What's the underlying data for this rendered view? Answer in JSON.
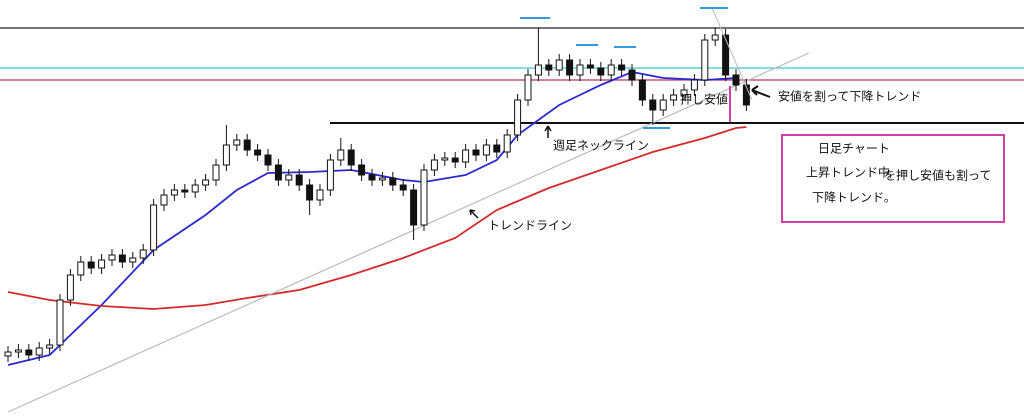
{
  "chart_data": {
    "type": "candlestick",
    "ylim": [
      0,
      418
    ],
    "open": [
      62,
      66,
      68,
      63,
      70,
      73,
      118,
      143,
      156,
      150,
      158,
      163,
      156,
      160,
      168,
      213,
      223,
      228,
      226,
      233,
      238,
      253,
      273,
      278,
      268,
      263,
      253,
      238,
      243,
      233,
      218,
      228,
      258,
      268,
      253,
      243,
      238,
      240,
      233,
      228,
      193,
      248,
      258,
      260,
      256,
      268,
      263,
      273,
      266,
      283,
      318,
      343,
      353,
      348,
      358,
      343,
      353,
      350,
      343,
      353,
      348,
      338,
      318,
      308,
      318,
      323,
      328,
      338,
      378,
      383,
      343,
      333
    ],
    "close": [
      66,
      68,
      63,
      70,
      73,
      118,
      143,
      156,
      150,
      158,
      163,
      156,
      160,
      168,
      213,
      223,
      228,
      226,
      233,
      238,
      253,
      273,
      278,
      268,
      263,
      253,
      238,
      243,
      233,
      218,
      228,
      258,
      268,
      253,
      243,
      238,
      240,
      233,
      228,
      193,
      248,
      258,
      260,
      256,
      268,
      263,
      273,
      266,
      283,
      318,
      343,
      353,
      348,
      358,
      343,
      353,
      350,
      343,
      353,
      348,
      338,
      318,
      308,
      318,
      323,
      328,
      338,
      378,
      383,
      343,
      333,
      313
    ],
    "high": [
      72,
      74,
      74,
      76,
      79,
      124,
      149,
      162,
      162,
      164,
      169,
      169,
      166,
      174,
      219,
      229,
      234,
      234,
      239,
      244,
      259,
      293,
      284,
      284,
      274,
      269,
      259,
      249,
      249,
      239,
      234,
      264,
      280,
      274,
      259,
      249,
      246,
      246,
      239,
      234,
      254,
      264,
      266,
      266,
      274,
      274,
      279,
      279,
      289,
      324,
      349,
      390,
      359,
      364,
      364,
      359,
      359,
      356,
      359,
      359,
      354,
      344,
      324,
      324,
      329,
      334,
      344,
      384,
      390,
      389,
      349,
      339
    ],
    "low": [
      56,
      60,
      57,
      57,
      64,
      67,
      112,
      137,
      144,
      144,
      152,
      150,
      150,
      154,
      162,
      207,
      217,
      220,
      220,
      227,
      232,
      247,
      267,
      262,
      257,
      247,
      232,
      232,
      227,
      203,
      212,
      222,
      252,
      247,
      237,
      232,
      232,
      227,
      222,
      178,
      187,
      242,
      252,
      250,
      250,
      257,
      257,
      260,
      260,
      277,
      312,
      337,
      342,
      342,
      337,
      337,
      344,
      337,
      337,
      342,
      332,
      312,
      293,
      302,
      312,
      317,
      322,
      332,
      372,
      337,
      327,
      307
    ],
    "lines": [
      {
        "color": "#2a2ad0",
        "x": [
          0,
          4,
          9,
          14,
          19,
          22,
          25,
          29,
          33,
          38,
          40,
          44,
          47,
          49,
          53,
          57,
          60,
          63,
          67,
          70
        ],
        "values": [
          53,
          63,
          113,
          168,
          203,
          228,
          245,
          246,
          248,
          238,
          236,
          243,
          258,
          283,
          313,
          333,
          346,
          340,
          338,
          340
        ]
      },
      {
        "color": "#d42a2a",
        "x": [
          0,
          4,
          9,
          14,
          19,
          23,
          28,
          33,
          38,
          43,
          47,
          52,
          57,
          62,
          67,
          70,
          71
        ],
        "values": [
          126,
          118,
          112,
          109,
          113,
          120,
          128,
          143,
          160,
          180,
          208,
          230,
          248,
          266,
          280,
          290,
          291
        ]
      },
      {
        "color": "#bbbbbb",
        "x": [
          0,
          77
        ],
        "values": [
          6,
          365
        ]
      }
    ],
    "levels": [
      {
        "value": 390,
        "color": "#222222"
      },
      {
        "value": 350,
        "color": "#3cc8d0"
      },
      {
        "value": 338,
        "color": "#c0306a"
      },
      {
        "value": 295,
        "color": "#111111"
      }
    ],
    "annotations": {
      "break": "安値を割って下降トレンド",
      "pullback_low": "押し安値",
      "neckline": "週足ネックライン",
      "trendline": "トレンドライン",
      "box_title": "日足チャート",
      "box_line1a": "上昇トレンド中",
      "box_line1b": "を押し安値も割って",
      "box_line2": "下降トレンド。"
    }
  }
}
